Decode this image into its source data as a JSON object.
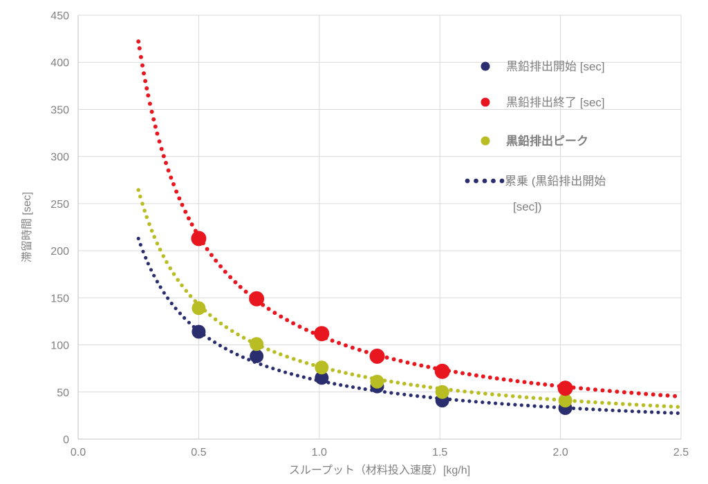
{
  "chart_data": {
    "type": "scatter",
    "title": "",
    "xlabel": "スループット（材料投入速度）[kg/h]",
    "ylabel": "滞留時間 [sec]",
    "xlim": [
      0,
      2.5
    ],
    "ylim": [
      0,
      450
    ],
    "grid": true,
    "x_ticks": {
      "values": [
        0,
        0.5,
        1.0,
        1.5,
        2.0,
        2.5
      ],
      "labels": [
        "0.0",
        "0.5",
        "1.0",
        "1.5",
        "2.0",
        "2.5"
      ]
    },
    "y_ticks": {
      "values": [
        0,
        50,
        100,
        150,
        200,
        250,
        300,
        350,
        400,
        450
      ],
      "labels": [
        "0",
        "50",
        "100",
        "150",
        "200",
        "250",
        "300",
        "350",
        "400",
        "450"
      ]
    },
    "x": [
      0.5,
      0.74,
      1.01,
      1.24,
      1.51,
      2.02
    ],
    "series": [
      {
        "id": "start",
        "name": "黒鉛排出開始 [sec]",
        "color": "#2a2d6e",
        "values": [
          114,
          88,
          65,
          56,
          41,
          33
        ],
        "trend": {
          "type": "power",
          "a": 62,
          "b": -0.89,
          "range": [
            0.25,
            2.5
          ]
        }
      },
      {
        "id": "peak",
        "name": "黒鉛排出ピーク",
        "color": "#b8bd23",
        "values": [
          139,
          101,
          76,
          61,
          50,
          41
        ],
        "trend": {
          "type": "power",
          "a": 77,
          "b": -0.89,
          "range": [
            0.25,
            2.5
          ]
        }
      },
      {
        "id": "end",
        "name": "黒鉛排出終了 [sec]",
        "color": "#e8171f",
        "values": [
          213,
          149,
          112,
          88,
          72,
          54
        ],
        "trend": {
          "type": "power",
          "a": 110,
          "b": -0.97,
          "range": [
            0.25,
            2.5
          ]
        }
      }
    ],
    "legend": {
      "position": "upper-right",
      "items": [
        {
          "label": "黒鉛排出開始 [sec]",
          "marker": "dot",
          "color": "#2a2d6e",
          "bold": false
        },
        {
          "label": "黒鉛排出終了 [sec]",
          "marker": "dot",
          "color": "#e8171f",
          "bold": false
        },
        {
          "label": "黒鉛排出ピーク",
          "marker": "dot",
          "color": "#b8bd23",
          "bold": true
        },
        {
          "label_lines": [
            "累乗 (黒鉛排出開始",
            "[sec])"
          ],
          "marker": "dotted-line",
          "color": "#2a2d6e",
          "bold": false
        }
      ]
    },
    "colors": {
      "gridline": "#d9d9d9",
      "axis_line": "#c0c0c0",
      "tick_text": "#808080",
      "axis_title_text": "#808080",
      "legend_text": "#7f7f7f"
    }
  }
}
